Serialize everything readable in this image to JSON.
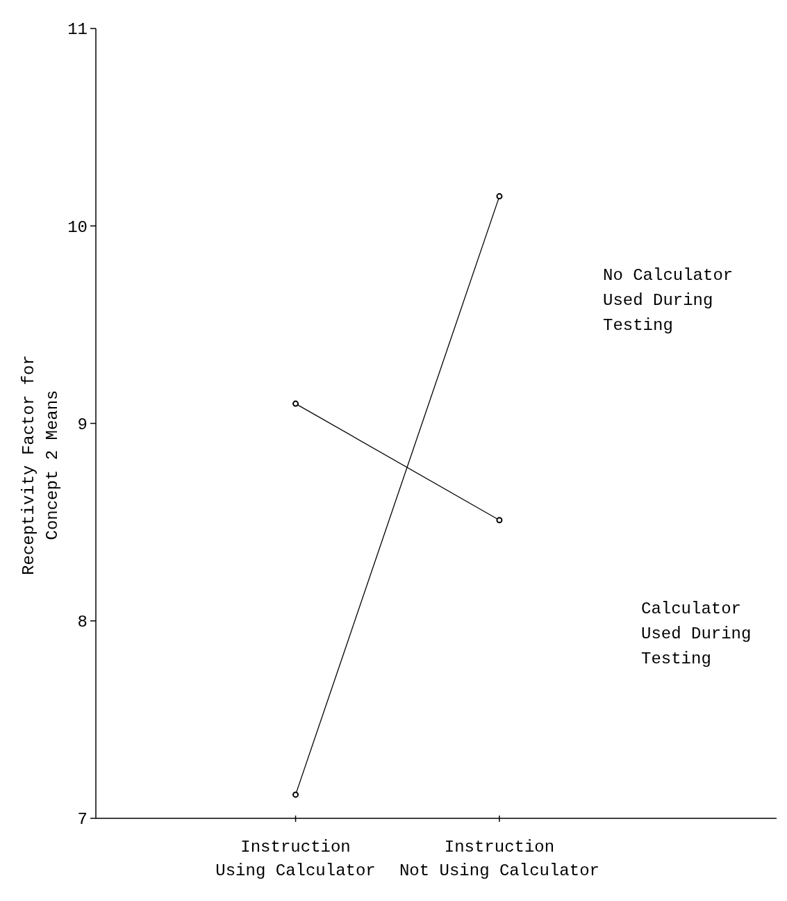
{
  "chart_data": {
    "type": "line",
    "ylabel": "Receptivity Factor for\nConcept 2 Means",
    "categories": [
      "Instruction\nUsing Calculator",
      "Instruction\nNot Using Calculator"
    ],
    "series": [
      {
        "name": "No Calculator\nUsed During\nTesting",
        "color": "#000000",
        "values": [
          7.12,
          10.15
        ]
      },
      {
        "name": "Calculator\nUsed During\nTesting",
        "color": "#000000",
        "values": [
          9.1,
          8.51
        ]
      }
    ],
    "ylim": [
      7,
      11
    ],
    "yticks": [
      7,
      8,
      9,
      10,
      11
    ],
    "grid": false,
    "marker": "circle",
    "line_style": "solid"
  }
}
